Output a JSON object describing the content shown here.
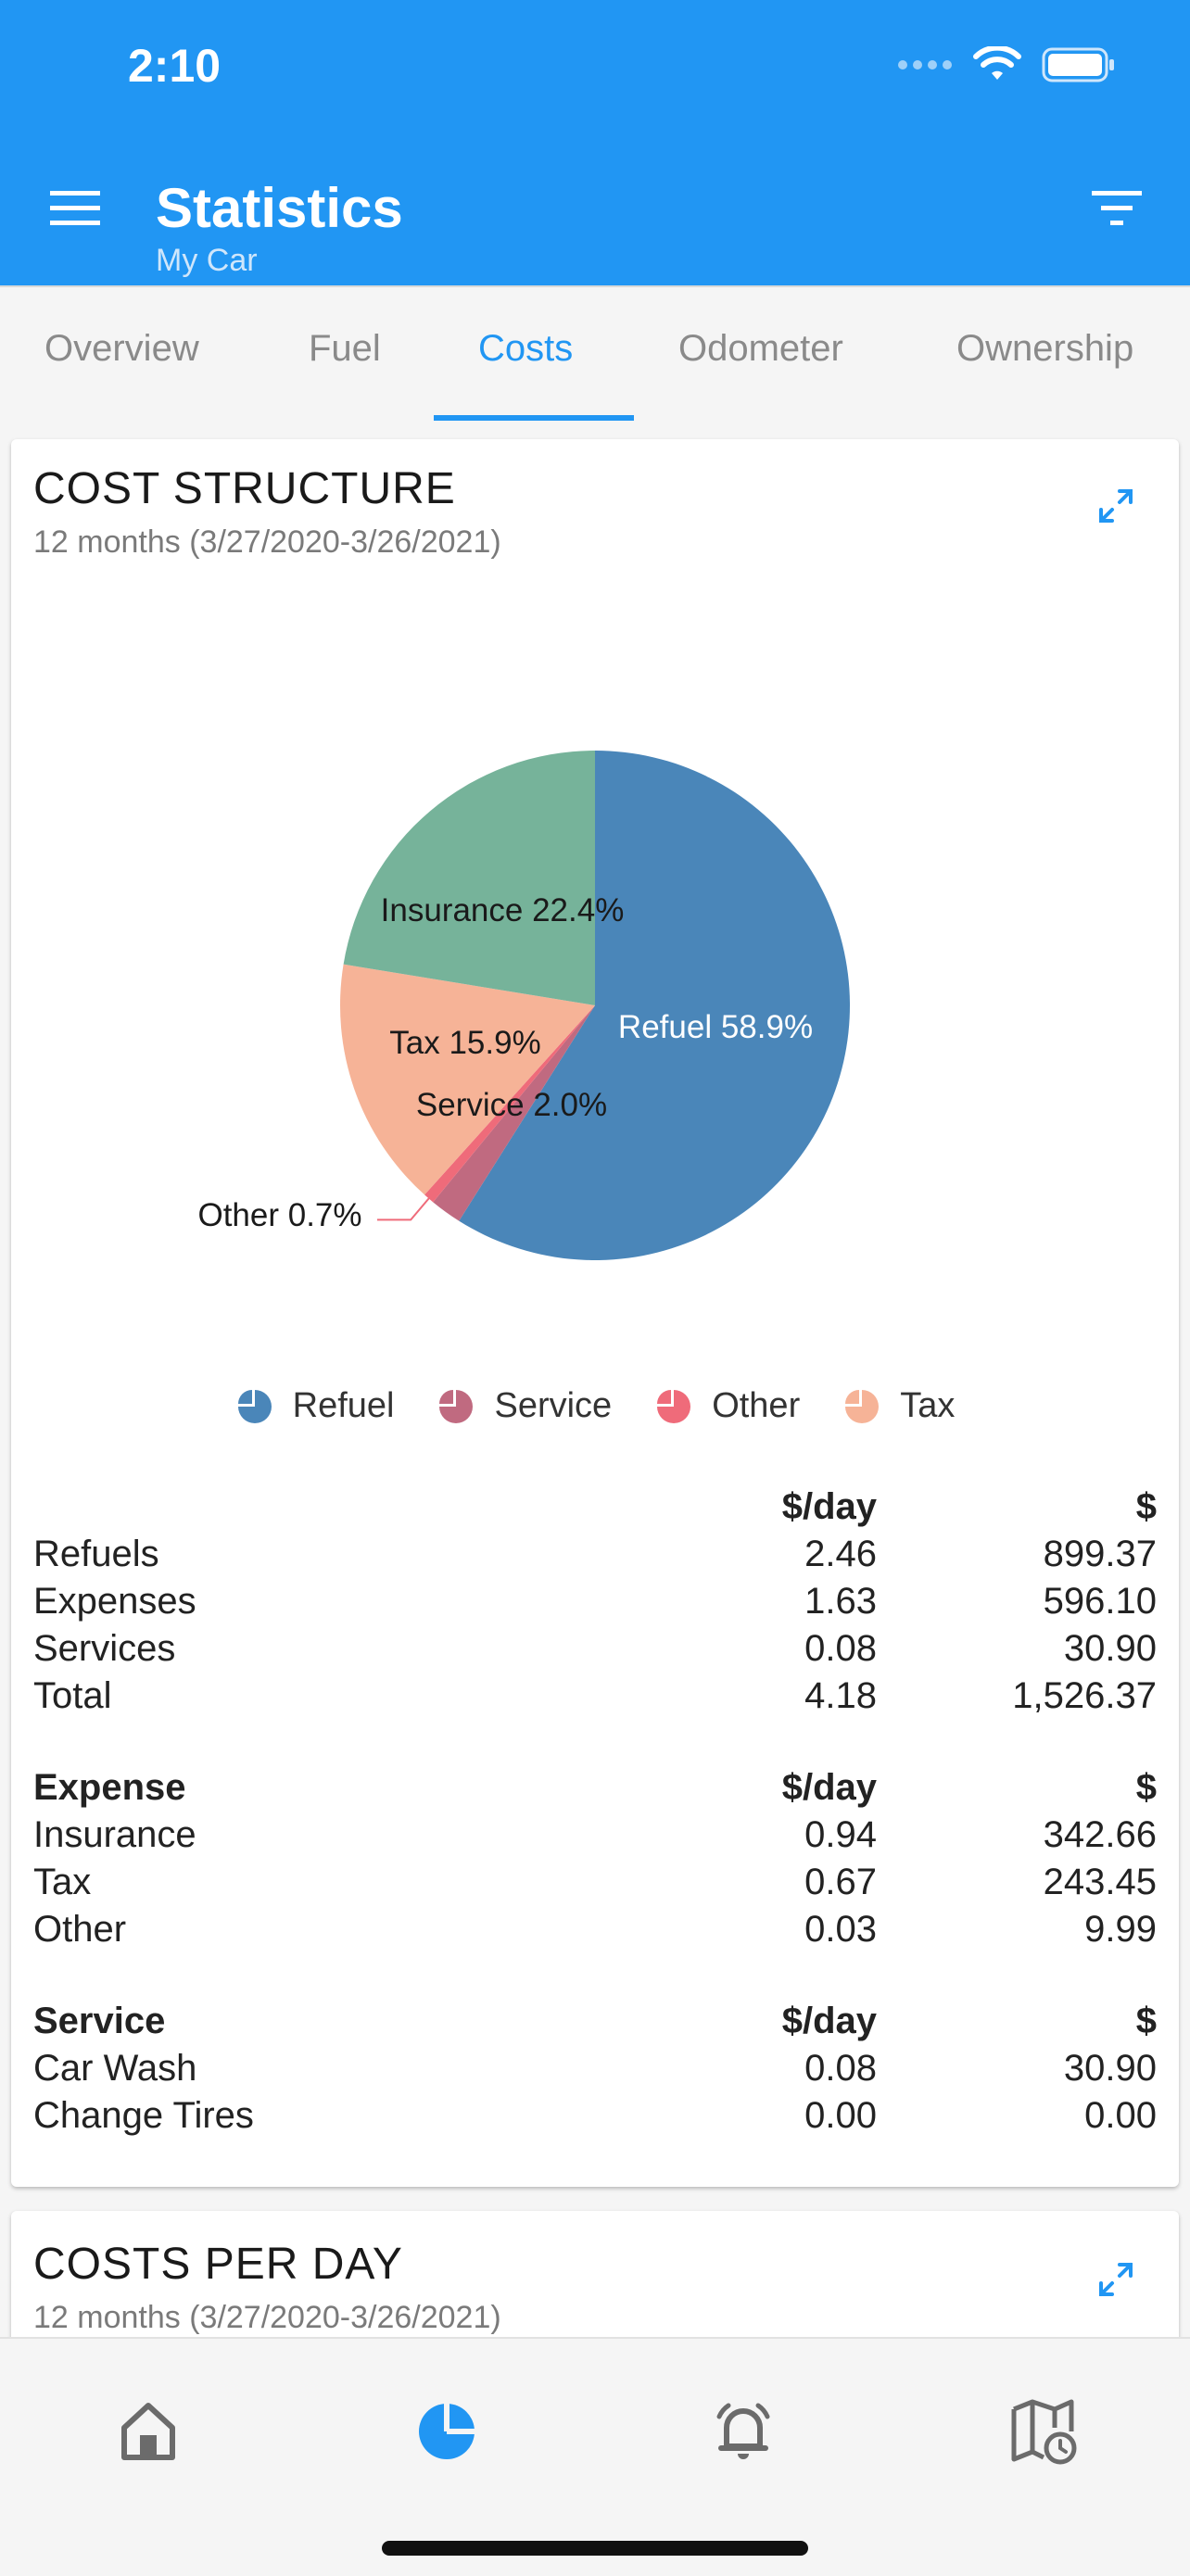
{
  "status": {
    "time": "2:10"
  },
  "appbar": {
    "title": "Statistics",
    "subtitle": "My Car"
  },
  "tabs": [
    "Overview",
    "Fuel",
    "Costs",
    "Odometer",
    "Ownership"
  ],
  "active_tab": "Costs",
  "colors": {
    "primary": "#2196f3",
    "refuel": "#4a86b9",
    "insurance": "#76b39a",
    "tax": "#f6b397",
    "service": "#c06a80",
    "other": "#ef6b7a"
  },
  "cost_structure": {
    "title": "COST STRUCTURE",
    "period": "12 months (3/27/2020-3/26/2021)",
    "legend": [
      "Refuel",
      "Service",
      "Other",
      "Tax"
    ],
    "table": {
      "summary": {
        "header": [
          "",
          "$/day",
          "$"
        ],
        "rows": [
          [
            "Refuels",
            "2.46",
            "899.37"
          ],
          [
            "Expenses",
            "1.63",
            "596.10"
          ],
          [
            "Services",
            "0.08",
            "30.90"
          ],
          [
            "Total",
            "4.18",
            "1,526.37"
          ]
        ]
      },
      "expense": {
        "header": [
          "Expense",
          "$/day",
          "$"
        ],
        "rows": [
          [
            "Insurance",
            "0.94",
            "342.66"
          ],
          [
            "Tax",
            "0.67",
            "243.45"
          ],
          [
            "Other",
            "0.03",
            "9.99"
          ]
        ]
      },
      "service": {
        "header": [
          "Service",
          "$/day",
          "$"
        ],
        "rows": [
          [
            "Car Wash",
            "0.08",
            "30.90"
          ],
          [
            "Change Tires",
            "0.00",
            "0.00"
          ]
        ]
      }
    }
  },
  "chart_data": {
    "type": "pie",
    "title": "COST STRUCTURE",
    "slices": [
      {
        "label": "Refuel",
        "value": 58.9,
        "text": "Refuel 58.9%",
        "color": "#4a86b9"
      },
      {
        "label": "Service",
        "value": 2.0,
        "text": "Service 2.0%",
        "color": "#c06a80"
      },
      {
        "label": "Other",
        "value": 0.7,
        "text": "Other 0.7%",
        "color": "#ef6b7a"
      },
      {
        "label": "Tax",
        "value": 15.9,
        "text": "Tax 15.9%",
        "color": "#f6b397"
      },
      {
        "label": "Insurance",
        "value": 22.4,
        "text": "Insurance 22.4%",
        "color": "#76b39a"
      }
    ]
  },
  "costs_per_day": {
    "title": "COSTS PER DAY",
    "period": "12 months (3/27/2020-3/26/2021)"
  },
  "bottom_nav": [
    "home",
    "statistics",
    "reminders",
    "history"
  ]
}
